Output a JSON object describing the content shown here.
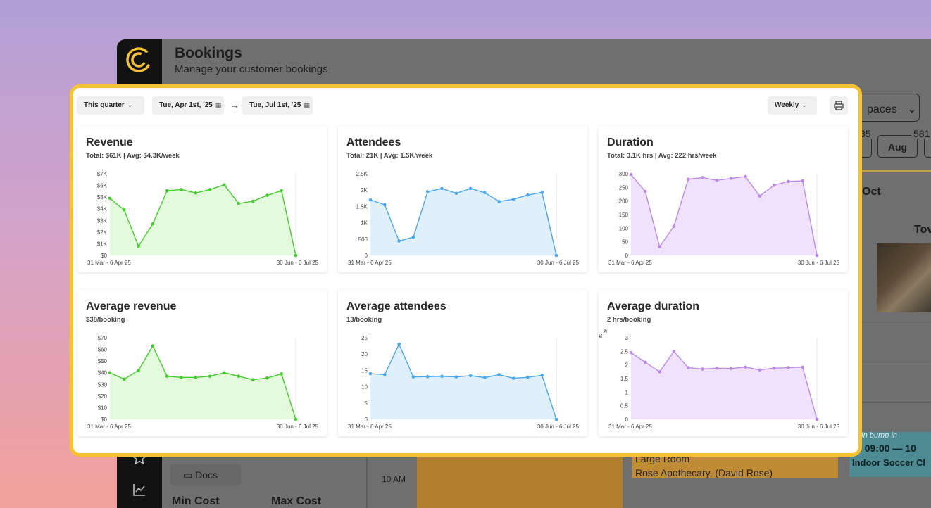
{
  "app": {
    "title": "Bookings",
    "subtitle": "Manage your customer bookings"
  },
  "background": {
    "spaces_label": "paces",
    "chip_month": "Aug",
    "num_a": "35",
    "num_b": "581",
    "month_label": "Oct",
    "venue_fragment": "Tov",
    "docs_label": "Docs",
    "min_cost": "Min Cost",
    "max_cost": "Max Cost",
    "time_label": "10 AM",
    "room_line1": "Large Room",
    "room_line2": "Rose Apothecary, (David Rose)",
    "teal_note": "min bump in",
    "teal_time": "09:00 — 10",
    "teal_name": "Indoor Soccer Cl"
  },
  "toolbar": {
    "period": "This quarter",
    "start_date": "Tue, Apr 1st, '25",
    "end_date": "Tue, Jul 1st, '25",
    "interval": "Weekly"
  },
  "colors": {
    "green": "#44cc2e",
    "green_fill": "#e3fadc",
    "blue": "#4aa6ee",
    "blue_fill": "#e0f0fb",
    "purple": "#bb8ae6",
    "purple_fill": "#f0e2fc",
    "accent_border": "#f7c232"
  },
  "cards": [
    {
      "title": "Revenue",
      "subtitle": "Total: $61K | Avg: $4.3K/week",
      "color": "green",
      "y_ticks": [
        "$7K",
        "$6K",
        "$5K",
        "$4K",
        "$3K",
        "$2K",
        "$1K",
        "$0"
      ],
      "y_max": 7000,
      "values": [
        4900,
        3900,
        800,
        2700,
        5550,
        5650,
        5350,
        5650,
        6050,
        4450,
        4650,
        5150,
        5550,
        0
      ],
      "x_start": "31 Mar - 6 Apr 25",
      "x_end": "30 Jun - 6 Jul 25"
    },
    {
      "title": "Attendees",
      "subtitle": "Total: 21K | Avg: 1.5K/week",
      "color": "blue",
      "y_ticks": [
        "2.5K",
        "2K",
        "1.5K",
        "1K",
        "500",
        "0"
      ],
      "y_max": 2500,
      "values": [
        1700,
        1550,
        440,
        560,
        1950,
        2050,
        1900,
        2050,
        1920,
        1650,
        1720,
        1850,
        1930,
        0
      ],
      "x_start": "31 Mar - 6 Apr 25",
      "x_end": "30 Jun - 6 Jul 25"
    },
    {
      "title": "Duration",
      "subtitle": "Total: 3.1K hrs | Avg: 222 hrs/week",
      "color": "purple",
      "y_ticks": [
        "300",
        "250",
        "200",
        "150",
        "100",
        "50",
        "0"
      ],
      "y_max": 300,
      "values": [
        297,
        235,
        32,
        107,
        280,
        286,
        276,
        283,
        290,
        218,
        258,
        272,
        274,
        0
      ],
      "x_start": "31 Mar - 6 Apr 25",
      "x_end": "30 Jun - 6 Jul 25"
    },
    {
      "title": "Average revenue",
      "subtitle": "$38/booking",
      "color": "green",
      "y_ticks": [
        "$70",
        "$60",
        "$50",
        "$40",
        "$30",
        "$20",
        "$10",
        "$0"
      ],
      "y_max": 70,
      "values": [
        40,
        34.5,
        42,
        63,
        37,
        36,
        36,
        37,
        40,
        37,
        34,
        35.5,
        39,
        0
      ],
      "x_start": "31 Mar - 6 Apr 25",
      "x_end": "30 Jun - 6 Jul 25"
    },
    {
      "title": "Average attendees",
      "subtitle": "13/booking",
      "color": "blue",
      "y_ticks": [
        "25",
        "20",
        "15",
        "10",
        "5",
        "0"
      ],
      "y_max": 25,
      "values": [
        14,
        13.7,
        23,
        13,
        13.1,
        13.2,
        13,
        13.4,
        12.8,
        13.7,
        12.6,
        12.9,
        13.5,
        0
      ],
      "x_start": "31 Mar - 6 Apr 25",
      "x_end": "30 Jun - 6 Jul 25"
    },
    {
      "title": "Average duration",
      "subtitle": "2 hrs/booking",
      "color": "purple",
      "y_ticks": [
        "3",
        "2.5",
        "2",
        "1.5",
        "1",
        "0.5",
        "0"
      ],
      "y_max": 3,
      "values": [
        2.45,
        2.1,
        1.75,
        2.5,
        1.9,
        1.85,
        1.88,
        1.87,
        1.92,
        1.82,
        1.88,
        1.9,
        1.92,
        0
      ],
      "x_start": "31 Mar - 6 Apr 25",
      "x_end": "30 Jun - 6 Jul 25",
      "has_expand": true
    }
  ],
  "icons": {
    "logo": "logo-rings-icon",
    "print": "printer-icon",
    "calendar": "calendar-icon",
    "chevron": "chevron-down-icon",
    "arrow": "arrow-right-icon",
    "expand": "expand-icon",
    "star": "star-icon",
    "chart": "line-chart-icon",
    "folder": "folder-icon"
  }
}
